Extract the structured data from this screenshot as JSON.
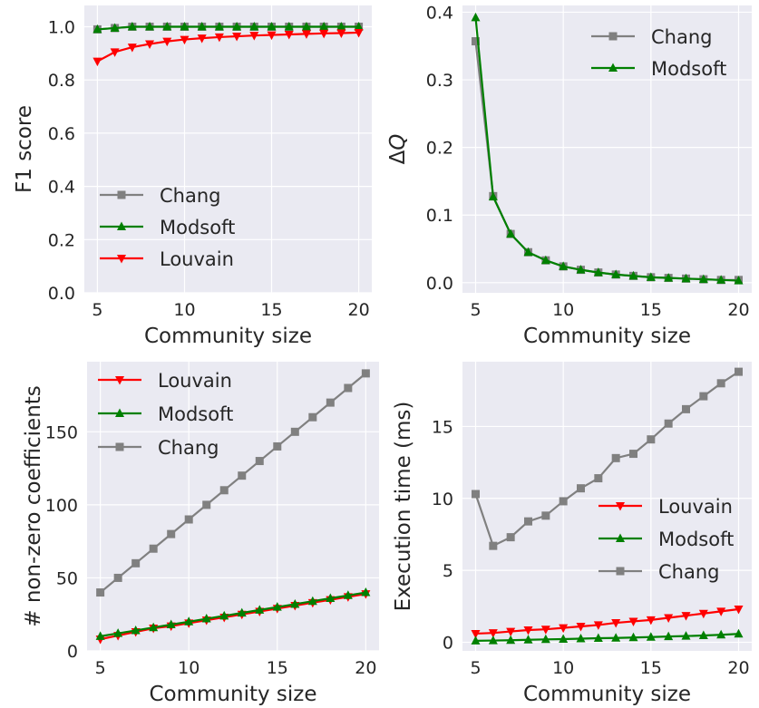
{
  "chart_data": [
    {
      "type": "line",
      "xlabel": "Community size",
      "ylabel": "F1 score",
      "xlim": [
        4.25,
        20.75
      ],
      "ylim": [
        0,
        1.08
      ],
      "xticks": [
        5,
        10,
        15,
        20
      ],
      "yticks": [
        0.0,
        0.2,
        0.4,
        0.6,
        0.8,
        1.0
      ],
      "ytick_labels": [
        "0.0",
        "0.2",
        "0.4",
        "0.6",
        "0.8",
        "1.0"
      ],
      "grid": true,
      "legend_position": "lower-left",
      "x": [
        5,
        6,
        7,
        8,
        9,
        10,
        11,
        12,
        13,
        14,
        15,
        16,
        17,
        18,
        19,
        20
      ],
      "series": [
        {
          "name": "Chang",
          "color": "#808080",
          "marker": "square",
          "values": [
            0.99,
            0.995,
            1.0,
            1.0,
            1.0,
            1.0,
            1.0,
            1.0,
            1.0,
            1.0,
            1.0,
            1.0,
            1.0,
            1.0,
            1.0,
            1.0
          ]
        },
        {
          "name": "Modsoft",
          "color": "#008000",
          "marker": "triangle-up",
          "values": [
            0.99,
            0.995,
            1.0,
            1.0,
            1.0,
            1.0,
            1.0,
            1.0,
            1.0,
            1.0,
            1.0,
            1.0,
            1.0,
            1.0,
            1.0,
            1.0
          ]
        },
        {
          "name": "Louvain",
          "color": "#ff0000",
          "marker": "triangle-down",
          "values": [
            0.87,
            0.905,
            0.923,
            0.935,
            0.945,
            0.952,
            0.957,
            0.961,
            0.964,
            0.967,
            0.969,
            0.971,
            0.973,
            0.975,
            0.976,
            0.978
          ]
        }
      ]
    },
    {
      "type": "line",
      "xlabel": "Community size",
      "ylabel": "ΔQ",
      "xlim": [
        4.25,
        20.75
      ],
      "ylim": [
        -0.015,
        0.41
      ],
      "xticks": [
        5,
        10,
        15,
        20
      ],
      "yticks": [
        0.0,
        0.1,
        0.2,
        0.3,
        0.4
      ],
      "ytick_labels": [
        "0.0",
        "0.1",
        "0.2",
        "0.3",
        "0.4"
      ],
      "grid": true,
      "legend_position": "top-right",
      "x": [
        5,
        6,
        7,
        8,
        9,
        10,
        11,
        12,
        13,
        14,
        15,
        16,
        17,
        18,
        19,
        20
      ],
      "series": [
        {
          "name": "Chang",
          "color": "#808080",
          "marker": "square",
          "values": [
            0.357,
            0.128,
            0.072,
            0.045,
            0.033,
            0.024,
            0.019,
            0.015,
            0.012,
            0.01,
            0.008,
            0.007,
            0.006,
            0.005,
            0.004,
            0.004
          ]
        },
        {
          "name": "Modsoft",
          "color": "#008000",
          "marker": "triangle-up",
          "values": [
            0.392,
            0.127,
            0.072,
            0.045,
            0.033,
            0.024,
            0.019,
            0.015,
            0.012,
            0.01,
            0.008,
            0.007,
            0.006,
            0.005,
            0.004,
            0.003
          ]
        }
      ]
    },
    {
      "type": "line",
      "xlabel": "Community size",
      "ylabel": "# non-zero coefficients",
      "xlim": [
        4.25,
        20.75
      ],
      "ylim": [
        0,
        198
      ],
      "xticks": [
        5,
        10,
        15,
        20
      ],
      "yticks": [
        0,
        50,
        100,
        150
      ],
      "ytick_labels": [
        "0",
        "50",
        "100",
        "150"
      ],
      "grid": true,
      "legend_position": "top-left",
      "x": [
        5,
        6,
        7,
        8,
        9,
        10,
        11,
        12,
        13,
        14,
        15,
        16,
        17,
        18,
        19,
        20
      ],
      "series": [
        {
          "name": "Louvain",
          "color": "#ff0000",
          "marker": "triangle-down",
          "values": [
            8,
            10.5,
            13,
            15.5,
            17,
            19,
            21,
            23,
            25,
            27,
            29,
            31,
            33,
            35,
            37,
            39
          ]
        },
        {
          "name": "Modsoft",
          "color": "#008000",
          "marker": "triangle-up",
          "values": [
            10,
            12,
            14,
            16,
            18,
            20,
            22,
            24,
            26,
            28,
            30,
            32,
            34,
            36,
            38,
            40
          ]
        },
        {
          "name": "Chang",
          "color": "#808080",
          "marker": "square",
          "values": [
            40,
            50,
            60,
            70,
            80,
            90,
            100,
            110,
            120,
            130,
            140,
            150,
            160,
            170,
            180,
            190
          ]
        }
      ]
    },
    {
      "type": "line",
      "xlabel": "Community size",
      "ylabel": "Execution time (ms)",
      "xlim": [
        4.25,
        20.75
      ],
      "ylim": [
        -0.6,
        19.5
      ],
      "xticks": [
        5,
        10,
        15,
        20
      ],
      "yticks": [
        0,
        5,
        10,
        15
      ],
      "ytick_labels": [
        "0",
        "5",
        "10",
        "15"
      ],
      "grid": true,
      "legend_position": "center-right",
      "x": [
        5,
        6,
        7,
        8,
        9,
        10,
        11,
        12,
        13,
        14,
        15,
        16,
        17,
        18,
        19,
        20
      ],
      "series": [
        {
          "name": "Louvain",
          "color": "#ff0000",
          "marker": "triangle-down",
          "values": [
            0.6,
            0.65,
            0.75,
            0.85,
            0.9,
            1.0,
            1.1,
            1.2,
            1.35,
            1.45,
            1.55,
            1.7,
            1.85,
            2.0,
            2.15,
            2.3
          ]
        },
        {
          "name": "Modsoft",
          "color": "#008000",
          "marker": "triangle-up",
          "values": [
            0.1,
            0.12,
            0.14,
            0.17,
            0.2,
            0.22,
            0.25,
            0.28,
            0.3,
            0.33,
            0.36,
            0.4,
            0.43,
            0.47,
            0.52,
            0.58
          ]
        },
        {
          "name": "Chang",
          "color": "#808080",
          "marker": "square",
          "values": [
            10.3,
            6.7,
            7.3,
            8.4,
            8.8,
            9.8,
            10.7,
            11.4,
            12.8,
            13.1,
            14.1,
            15.2,
            16.2,
            17.1,
            18.0,
            18.8
          ]
        }
      ]
    }
  ]
}
